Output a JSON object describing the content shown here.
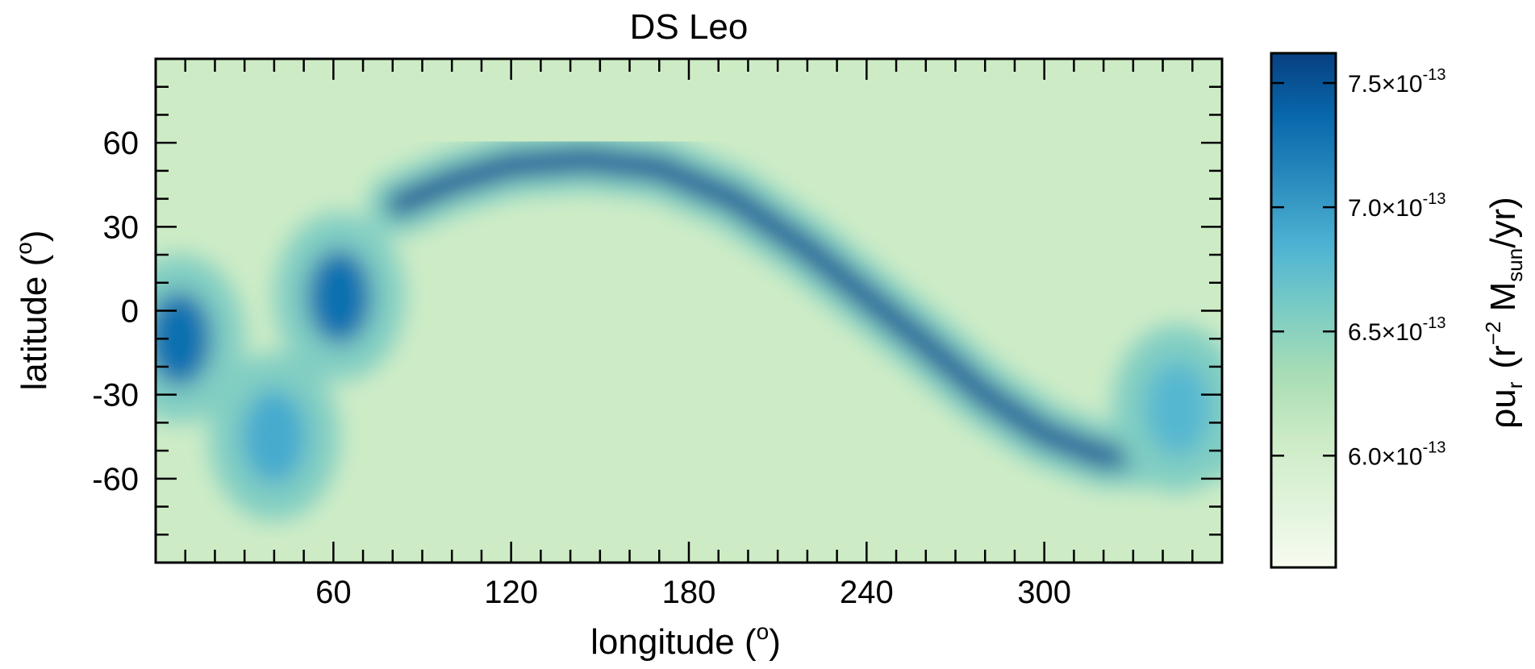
{
  "chart_data": {
    "type": "heatmap",
    "title": "DS Leo",
    "xlabel": "longitude (o)",
    "ylabel": "latitude (o)",
    "xlim": [
      0,
      360
    ],
    "ylim": [
      -90,
      90
    ],
    "x_ticks": [
      60,
      120,
      180,
      240,
      300
    ],
    "x_tick_labels": [
      "60",
      "120",
      "180",
      "240",
      "300"
    ],
    "y_ticks": [
      60,
      30,
      0,
      -30,
      -60
    ],
    "y_tick_labels": [
      "60",
      "30",
      "0",
      "-30",
      "-60"
    ],
    "colorbar": {
      "label": "ρu_r (r^-2 M_sun/yr)",
      "label_parts": {
        "rho": "ρ",
        "u": "u",
        "u_sub": "r",
        "r": "(r",
        "r_sup": "−2",
        "m": " M",
        "m_sub": "sun",
        "tail": "/yr)"
      },
      "range": [
        5.55e-13,
        7.62e-13
      ],
      "ticks": [
        7.5e-13,
        7e-13,
        6.5e-13,
        6e-13
      ],
      "tick_labels": [
        {
          "mant": "7.5×10",
          "exp": "-13"
        },
        {
          "mant": "7.0×10",
          "exp": "-13"
        },
        {
          "mant": "6.5×10",
          "exp": "-13"
        },
        {
          "mant": "6.0×10",
          "exp": "-13"
        }
      ],
      "colormap": "GnBu",
      "colors": [
        "#f7fcf0",
        "#e0f3db",
        "#ccebc5",
        "#a8ddb5",
        "#7bccc4",
        "#4eb3d3",
        "#2b8cbe",
        "#0868ac",
        "#084081"
      ]
    },
    "field_description": {
      "background_value": 6.05e-13,
      "features": [
        {
          "type": "band",
          "path_lon": [
            82,
            100,
            120,
            145,
            170,
            195,
            220,
            240,
            260,
            280,
            300,
            320,
            345,
            360
          ],
          "path_lat": [
            38,
            46,
            52,
            54,
            51,
            40,
            22,
            5,
            -12,
            -30,
            -44,
            -52,
            -52,
            -48
          ],
          "peak": 7.5e-13
        },
        {
          "type": "blob",
          "lon": 62,
          "lat": 5,
          "peak": 7.3e-13
        },
        {
          "type": "blob",
          "lon": 8,
          "lat": -10,
          "peak": 7.3e-13
        },
        {
          "type": "blob",
          "lon": 40,
          "lat": -45,
          "peak": 6.9e-13
        },
        {
          "type": "blob",
          "lon": 345,
          "lat": -35,
          "peak": 6.8e-13
        }
      ]
    }
  }
}
